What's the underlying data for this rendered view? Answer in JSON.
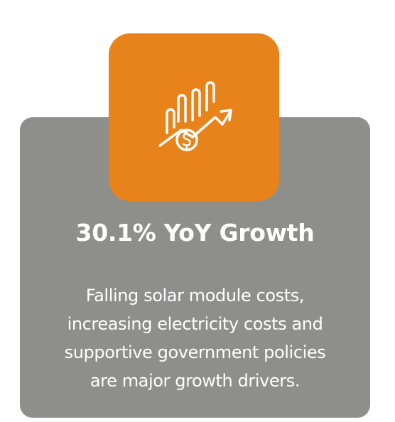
{
  "card": {
    "title": "30.1% YoY Growth",
    "description_lines": [
      "Falling solar module costs,",
      "increasing electricity costs and",
      "supportive government policies",
      "are major growth drivers."
    ]
  }
}
